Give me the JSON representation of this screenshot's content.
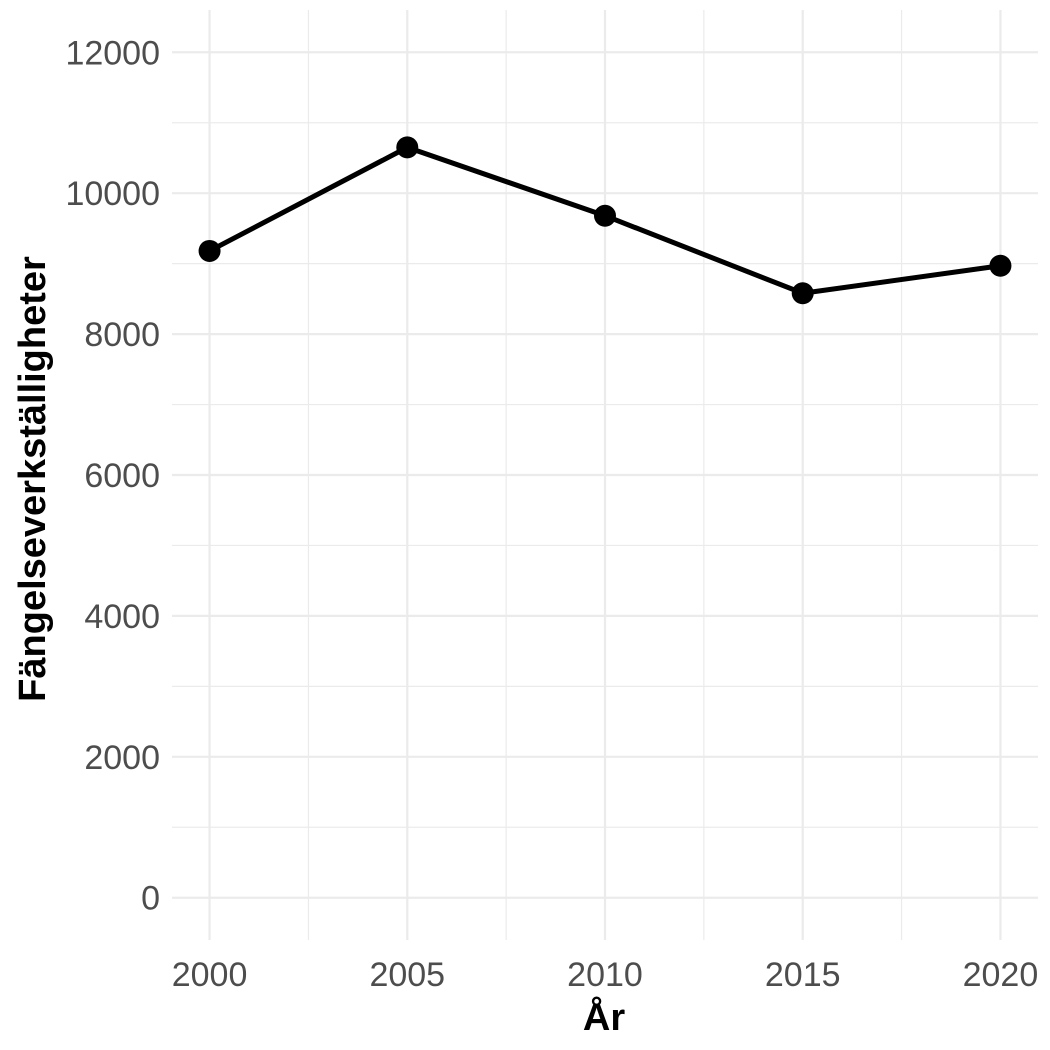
{
  "chart_data": {
    "type": "line",
    "title": "",
    "xlabel": "År",
    "ylabel": "Fängelseverkställigheter",
    "x": [
      2000,
      2005,
      2010,
      2015,
      2020
    ],
    "series": [
      {
        "values": [
          9180,
          10650,
          9680,
          8580,
          8970
        ]
      }
    ],
    "xlim": [
      1999.05,
      2020.95
    ],
    "ylim": [
      -600,
      12600
    ],
    "x_ticks": [
      2000,
      2005,
      2010,
      2015,
      2020
    ],
    "x_tick_labels": [
      "2000",
      "2005",
      "2010",
      "2015",
      "2020"
    ],
    "y_ticks": [
      0,
      2000,
      4000,
      6000,
      8000,
      10000,
      12000
    ],
    "y_tick_labels": [
      "0",
      "2000",
      "4000",
      "6000",
      "8000",
      "10000",
      "12000"
    ],
    "grid": true,
    "legend": "none",
    "colors": {
      "line": "#000000",
      "grid": "#ebebeb",
      "tick_text": "#4d4d4d",
      "axis_title": "#000000",
      "background": "#ffffff"
    }
  }
}
